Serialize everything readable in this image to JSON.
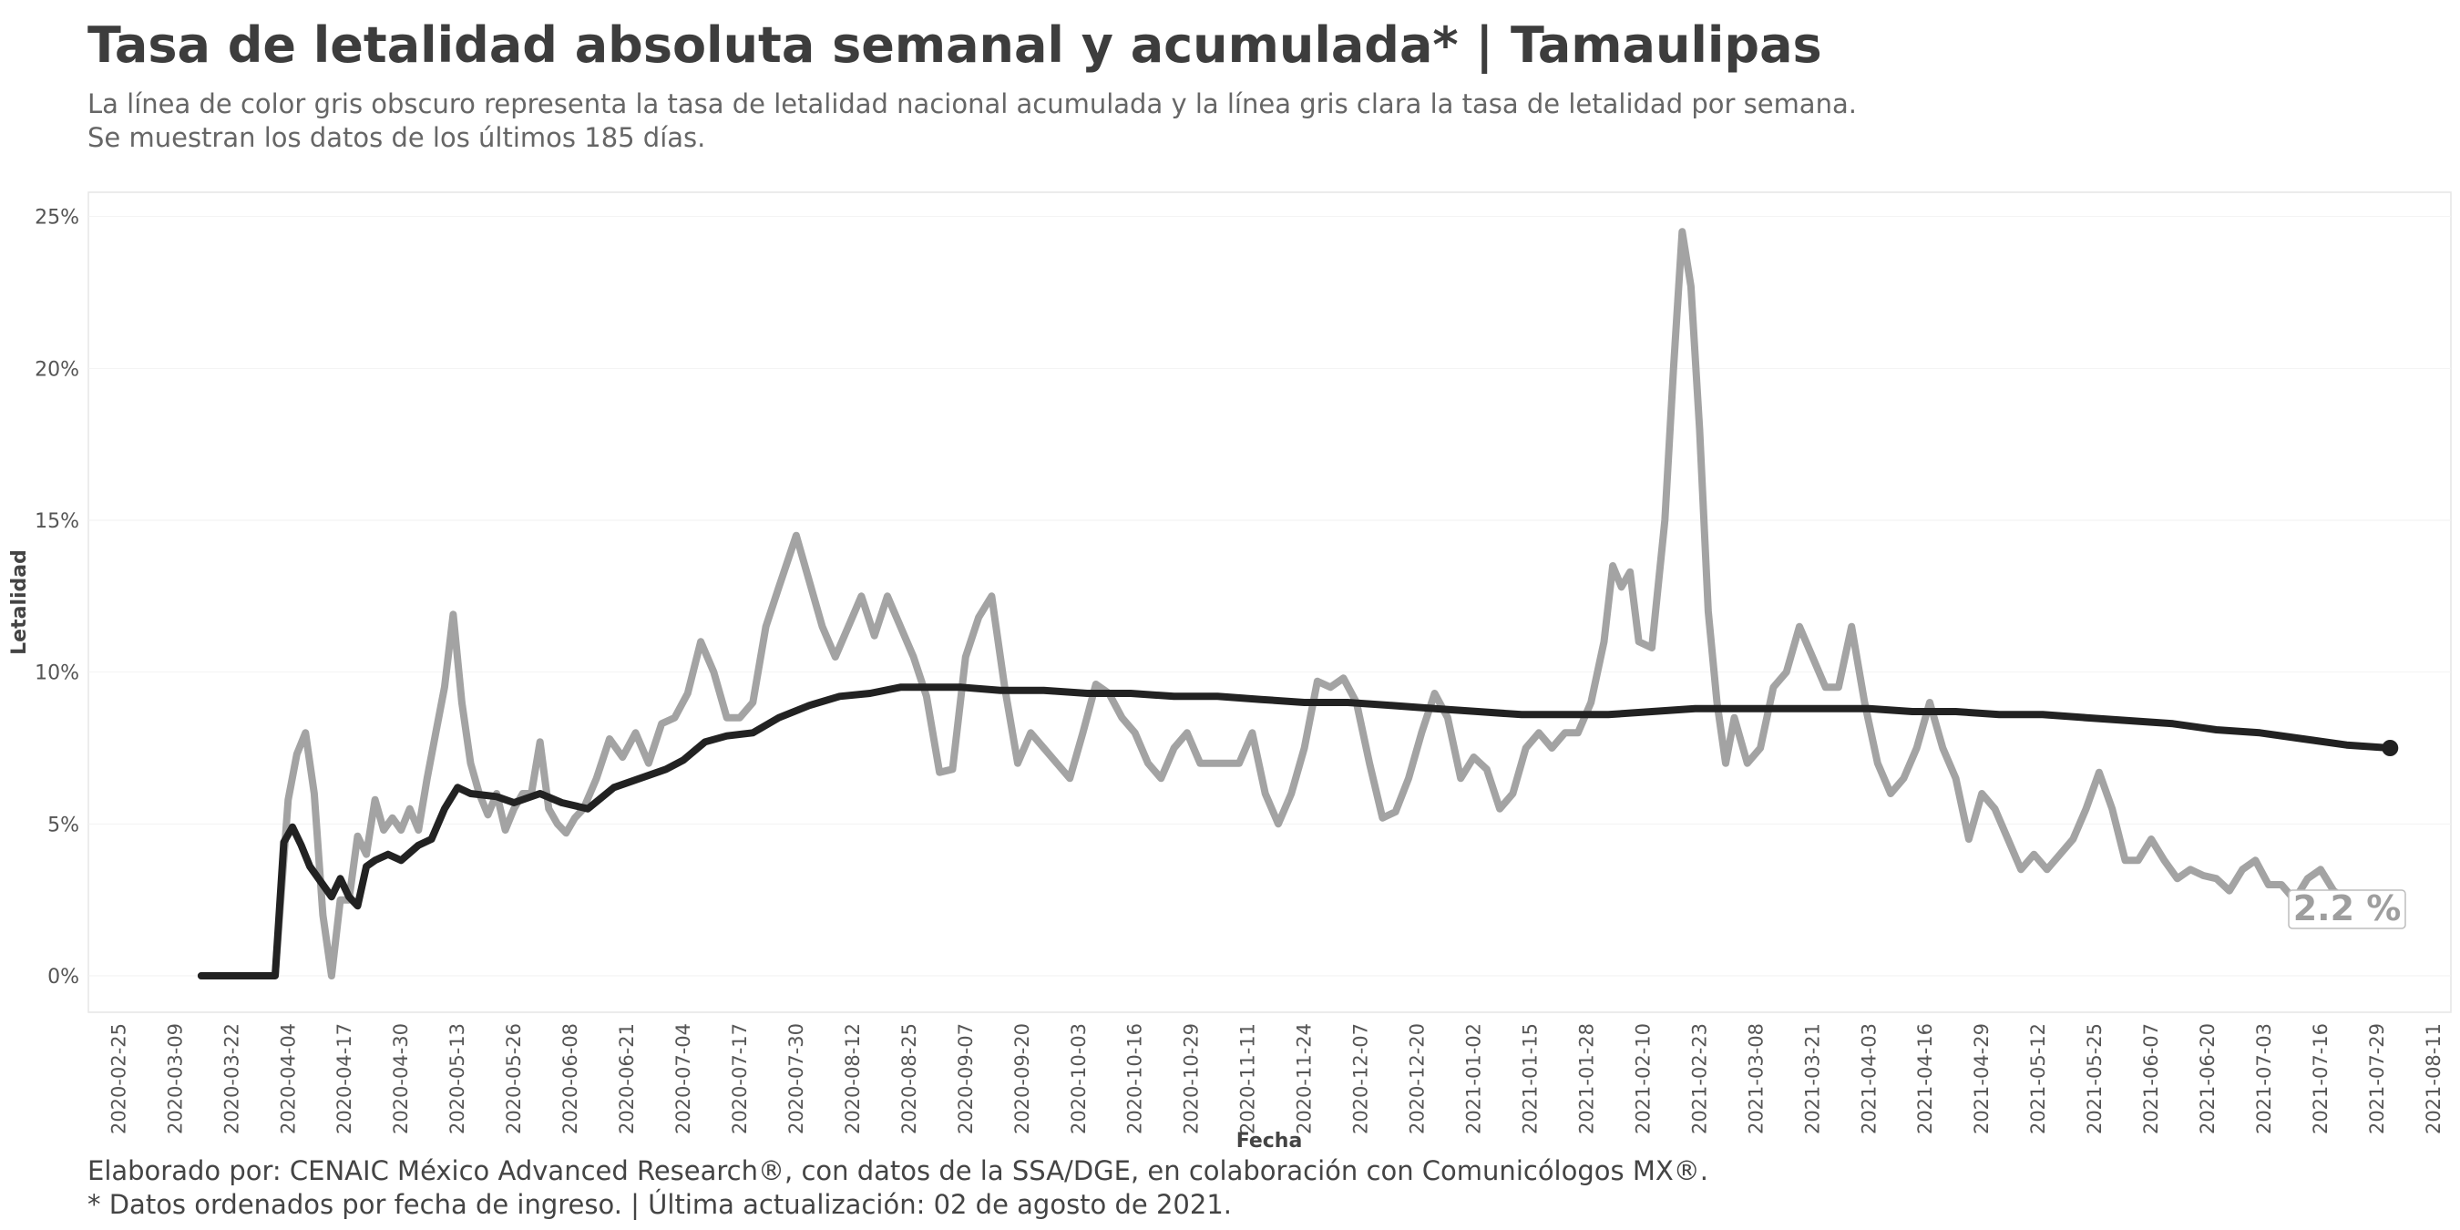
{
  "header": {
    "title": "Tasa de letalidad absoluta semanal y acumulada* | Tamaulipas",
    "subtitle_line1": "La línea de color gris obscuro representa la tasa de letalidad nacional acumulada y la línea gris clara la tasa de letalidad por semana.",
    "subtitle_line2": "Se muestran los datos de los últimos 185 días."
  },
  "footer": {
    "line1": "Elaborado por: CENAIC México Advanced Research®, con datos de la SSA/DGE, en colaboración con Comunicólogos MX®.",
    "line2": "* Datos ordenados por fecha de ingreso. | Última actualización: 02 de agosto de 2021."
  },
  "colors": {
    "weekly": "#a3a3a3",
    "cumulative": "#222222",
    "frame": "#e6e6e6",
    "grid": "#f2f2f2"
  },
  "end_label": "2.2 %",
  "chart_data": {
    "type": "line",
    "xlabel": "Fecha",
    "ylabel": "Letalidad",
    "ylim": [
      -1.2,
      25.8
    ],
    "yticks": [
      0,
      5,
      10,
      15,
      20,
      25
    ],
    "ytick_labels": [
      "0%",
      "5%",
      "10%",
      "15%",
      "20%",
      "25%"
    ],
    "xlim": [
      "2020-02-18",
      "2021-08-15"
    ],
    "xticks": [
      "2020-02-25",
      "2020-03-09",
      "2020-03-22",
      "2020-04-04",
      "2020-04-17",
      "2020-04-30",
      "2020-05-13",
      "2020-05-26",
      "2020-06-08",
      "2020-06-21",
      "2020-07-04",
      "2020-07-17",
      "2020-07-30",
      "2020-08-12",
      "2020-08-25",
      "2020-09-07",
      "2020-09-20",
      "2020-10-03",
      "2020-10-16",
      "2020-10-29",
      "2020-11-11",
      "2020-11-24",
      "2020-12-07",
      "2020-12-20",
      "2021-01-02",
      "2021-01-15",
      "2021-01-28",
      "2021-02-10",
      "2021-02-23",
      "2021-03-08",
      "2021-03-21",
      "2021-04-03",
      "2021-04-16",
      "2021-04-29",
      "2021-05-12",
      "2021-05-25",
      "2021-06-07",
      "2021-06-20",
      "2021-07-03",
      "2021-07-16",
      "2021-07-29",
      "2021-08-11"
    ],
    "series": [
      {
        "role": "weekly",
        "points": [
          [
            "2020-03-15",
            0
          ],
          [
            "2020-04-01",
            0
          ],
          [
            "2020-04-04",
            5.8
          ],
          [
            "2020-04-06",
            7.3
          ],
          [
            "2020-04-08",
            8.0
          ],
          [
            "2020-04-10",
            6.0
          ],
          [
            "2020-04-12",
            2.0
          ],
          [
            "2020-04-14",
            0
          ],
          [
            "2020-04-16",
            2.5
          ],
          [
            "2020-04-18",
            2.5
          ],
          [
            "2020-04-20",
            4.6
          ],
          [
            "2020-04-22",
            4.0
          ],
          [
            "2020-04-24",
            5.8
          ],
          [
            "2020-04-26",
            4.8
          ],
          [
            "2020-04-28",
            5.2
          ],
          [
            "2020-04-30",
            4.8
          ],
          [
            "2020-05-02",
            5.5
          ],
          [
            "2020-05-04",
            4.8
          ],
          [
            "2020-05-06",
            6.5
          ],
          [
            "2020-05-08",
            8.0
          ],
          [
            "2020-05-10",
            9.5
          ],
          [
            "2020-05-12",
            11.9
          ],
          [
            "2020-05-14",
            9.0
          ],
          [
            "2020-05-16",
            7.0
          ],
          [
            "2020-05-18",
            6.0
          ],
          [
            "2020-05-20",
            5.3
          ],
          [
            "2020-05-22",
            6.0
          ],
          [
            "2020-05-24",
            4.8
          ],
          [
            "2020-05-26",
            5.5
          ],
          [
            "2020-05-28",
            6.0
          ],
          [
            "2020-05-30",
            6.0
          ],
          [
            "2020-06-01",
            7.7
          ],
          [
            "2020-06-03",
            5.5
          ],
          [
            "2020-06-05",
            5.0
          ],
          [
            "2020-06-07",
            4.7
          ],
          [
            "2020-06-09",
            5.2
          ],
          [
            "2020-06-11",
            5.5
          ],
          [
            "2020-06-14",
            6.5
          ],
          [
            "2020-06-17",
            7.8
          ],
          [
            "2020-06-20",
            7.2
          ],
          [
            "2020-06-23",
            8.0
          ],
          [
            "2020-06-26",
            7.0
          ],
          [
            "2020-06-29",
            8.3
          ],
          [
            "2020-07-02",
            8.5
          ],
          [
            "2020-07-05",
            9.3
          ],
          [
            "2020-07-08",
            11.0
          ],
          [
            "2020-07-11",
            10.0
          ],
          [
            "2020-07-14",
            8.5
          ],
          [
            "2020-07-17",
            8.5
          ],
          [
            "2020-07-20",
            9.0
          ],
          [
            "2020-07-23",
            11.5
          ],
          [
            "2020-07-26",
            12.8
          ],
          [
            "2020-07-30",
            14.5
          ],
          [
            "2020-08-02",
            13.0
          ],
          [
            "2020-08-05",
            11.5
          ],
          [
            "2020-08-08",
            10.5
          ],
          [
            "2020-08-11",
            11.5
          ],
          [
            "2020-08-14",
            12.5
          ],
          [
            "2020-08-17",
            11.2
          ],
          [
            "2020-08-20",
            12.5
          ],
          [
            "2020-08-23",
            11.5
          ],
          [
            "2020-08-26",
            10.5
          ],
          [
            "2020-08-29",
            9.2
          ],
          [
            "2020-09-01",
            6.7
          ],
          [
            "2020-09-04",
            6.8
          ],
          [
            "2020-09-07",
            10.5
          ],
          [
            "2020-09-10",
            11.8
          ],
          [
            "2020-09-13",
            12.5
          ],
          [
            "2020-09-16",
            9.5
          ],
          [
            "2020-09-19",
            7.0
          ],
          [
            "2020-09-22",
            8.0
          ],
          [
            "2020-09-25",
            7.5
          ],
          [
            "2020-09-28",
            7.0
          ],
          [
            "2020-10-01",
            6.5
          ],
          [
            "2020-10-04",
            8.0
          ],
          [
            "2020-10-07",
            9.6
          ],
          [
            "2020-10-10",
            9.3
          ],
          [
            "2020-10-13",
            8.5
          ],
          [
            "2020-10-16",
            8.0
          ],
          [
            "2020-10-19",
            7.0
          ],
          [
            "2020-10-22",
            6.5
          ],
          [
            "2020-10-25",
            7.5
          ],
          [
            "2020-10-28",
            8.0
          ],
          [
            "2020-10-31",
            7.0
          ],
          [
            "2020-11-03",
            7.0
          ],
          [
            "2020-11-06",
            7.0
          ],
          [
            "2020-11-09",
            7.0
          ],
          [
            "2020-11-12",
            8.0
          ],
          [
            "2020-11-15",
            6.0
          ],
          [
            "2020-11-18",
            5.0
          ],
          [
            "2020-11-21",
            6.0
          ],
          [
            "2020-11-24",
            7.5
          ],
          [
            "2020-11-27",
            9.7
          ],
          [
            "2020-11-30",
            9.5
          ],
          [
            "2020-12-03",
            9.8
          ],
          [
            "2020-12-06",
            9.0
          ],
          [
            "2020-12-09",
            7.0
          ],
          [
            "2020-12-12",
            5.2
          ],
          [
            "2020-12-15",
            5.4
          ],
          [
            "2020-12-18",
            6.5
          ],
          [
            "2020-12-21",
            8.0
          ],
          [
            "2020-12-24",
            9.3
          ],
          [
            "2020-12-27",
            8.5
          ],
          [
            "2020-12-30",
            6.5
          ],
          [
            "2021-01-02",
            7.2
          ],
          [
            "2021-01-05",
            6.8
          ],
          [
            "2021-01-08",
            5.5
          ],
          [
            "2021-01-11",
            6.0
          ],
          [
            "2021-01-14",
            7.5
          ],
          [
            "2021-01-17",
            8.0
          ],
          [
            "2021-01-20",
            7.5
          ],
          [
            "2021-01-23",
            8.0
          ],
          [
            "2021-01-26",
            8.0
          ],
          [
            "2021-01-29",
            9.0
          ],
          [
            "2021-02-01",
            11.0
          ],
          [
            "2021-02-03",
            13.5
          ],
          [
            "2021-02-05",
            12.8
          ],
          [
            "2021-02-07",
            13.3
          ],
          [
            "2021-02-09",
            11.0
          ],
          [
            "2021-02-12",
            10.8
          ],
          [
            "2021-02-15",
            15.0
          ],
          [
            "2021-02-17",
            20.0
          ],
          [
            "2021-02-19",
            24.5
          ],
          [
            "2021-02-21",
            22.7
          ],
          [
            "2021-02-23",
            18.0
          ],
          [
            "2021-02-25",
            12.0
          ],
          [
            "2021-02-27",
            9.0
          ],
          [
            "2021-03-01",
            7.0
          ],
          [
            "2021-03-03",
            8.5
          ],
          [
            "2021-03-06",
            7.0
          ],
          [
            "2021-03-09",
            7.5
          ],
          [
            "2021-03-12",
            9.5
          ],
          [
            "2021-03-15",
            10.0
          ],
          [
            "2021-03-18",
            11.5
          ],
          [
            "2021-03-21",
            10.5
          ],
          [
            "2021-03-24",
            9.5
          ],
          [
            "2021-03-27",
            9.5
          ],
          [
            "2021-03-30",
            11.5
          ],
          [
            "2021-04-02",
            9.0
          ],
          [
            "2021-04-05",
            7.0
          ],
          [
            "2021-04-08",
            6.0
          ],
          [
            "2021-04-11",
            6.5
          ],
          [
            "2021-04-14",
            7.5
          ],
          [
            "2021-04-17",
            9.0
          ],
          [
            "2021-04-20",
            7.5
          ],
          [
            "2021-04-23",
            6.5
          ],
          [
            "2021-04-26",
            4.5
          ],
          [
            "2021-04-29",
            6.0
          ],
          [
            "2021-05-02",
            5.5
          ],
          [
            "2021-05-05",
            4.5
          ],
          [
            "2021-05-08",
            3.5
          ],
          [
            "2021-05-11",
            4.0
          ],
          [
            "2021-05-14",
            3.5
          ],
          [
            "2021-05-17",
            4.0
          ],
          [
            "2021-05-20",
            4.5
          ],
          [
            "2021-05-23",
            5.5
          ],
          [
            "2021-05-26",
            6.7
          ],
          [
            "2021-05-29",
            5.5
          ],
          [
            "2021-06-01",
            3.8
          ],
          [
            "2021-06-04",
            3.8
          ],
          [
            "2021-06-07",
            4.5
          ],
          [
            "2021-06-10",
            3.8
          ],
          [
            "2021-06-13",
            3.2
          ],
          [
            "2021-06-16",
            3.5
          ],
          [
            "2021-06-19",
            3.3
          ],
          [
            "2021-06-22",
            3.2
          ],
          [
            "2021-06-25",
            2.8
          ],
          [
            "2021-06-28",
            3.5
          ],
          [
            "2021-07-01",
            3.8
          ],
          [
            "2021-07-04",
            3.0
          ],
          [
            "2021-07-07",
            3.0
          ],
          [
            "2021-07-10",
            2.5
          ],
          [
            "2021-07-13",
            3.2
          ],
          [
            "2021-07-16",
            3.5
          ],
          [
            "2021-07-19",
            2.8
          ],
          [
            "2021-07-22",
            2.5
          ],
          [
            "2021-07-25",
            2.3
          ],
          [
            "2021-07-28",
            2.2
          ],
          [
            "2021-08-01",
            2.2
          ]
        ]
      },
      {
        "role": "cumulative",
        "points": [
          [
            "2020-03-15",
            0
          ],
          [
            "2020-04-01",
            0
          ],
          [
            "2020-04-03",
            4.4
          ],
          [
            "2020-04-05",
            4.9
          ],
          [
            "2020-04-07",
            4.3
          ],
          [
            "2020-04-09",
            3.6
          ],
          [
            "2020-04-12",
            3.0
          ],
          [
            "2020-04-14",
            2.6
          ],
          [
            "2020-04-16",
            3.2
          ],
          [
            "2020-04-18",
            2.6
          ],
          [
            "2020-04-20",
            2.3
          ],
          [
            "2020-04-22",
            3.6
          ],
          [
            "2020-04-24",
            3.8
          ],
          [
            "2020-04-27",
            4.0
          ],
          [
            "2020-04-30",
            3.8
          ],
          [
            "2020-05-04",
            4.3
          ],
          [
            "2020-05-07",
            4.5
          ],
          [
            "2020-05-10",
            5.5
          ],
          [
            "2020-05-13",
            6.2
          ],
          [
            "2020-05-16",
            6.0
          ],
          [
            "2020-05-22",
            5.9
          ],
          [
            "2020-05-26",
            5.7
          ],
          [
            "2020-06-01",
            6.0
          ],
          [
            "2020-06-06",
            5.7
          ],
          [
            "2020-06-12",
            5.5
          ],
          [
            "2020-06-18",
            6.2
          ],
          [
            "2020-06-24",
            6.5
          ],
          [
            "2020-06-30",
            6.8
          ],
          [
            "2020-07-04",
            7.1
          ],
          [
            "2020-07-09",
            7.7
          ],
          [
            "2020-07-14",
            7.9
          ],
          [
            "2020-07-20",
            8.0
          ],
          [
            "2020-07-26",
            8.5
          ],
          [
            "2020-08-02",
            8.9
          ],
          [
            "2020-08-09",
            9.2
          ],
          [
            "2020-08-16",
            9.3
          ],
          [
            "2020-08-23",
            9.5
          ],
          [
            "2020-08-30",
            9.5
          ],
          [
            "2020-09-06",
            9.5
          ],
          [
            "2020-09-15",
            9.4
          ],
          [
            "2020-09-25",
            9.4
          ],
          [
            "2020-10-05",
            9.3
          ],
          [
            "2020-10-15",
            9.3
          ],
          [
            "2020-10-25",
            9.2
          ],
          [
            "2020-11-04",
            9.2
          ],
          [
            "2020-11-14",
            9.1
          ],
          [
            "2020-11-24",
            9.0
          ],
          [
            "2020-12-04",
            9.0
          ],
          [
            "2020-12-14",
            8.9
          ],
          [
            "2020-12-24",
            8.8
          ],
          [
            "2021-01-03",
            8.7
          ],
          [
            "2021-01-13",
            8.6
          ],
          [
            "2021-01-23",
            8.6
          ],
          [
            "2021-02-02",
            8.6
          ],
          [
            "2021-02-12",
            8.7
          ],
          [
            "2021-02-22",
            8.8
          ],
          [
            "2021-03-04",
            8.8
          ],
          [
            "2021-03-14",
            8.8
          ],
          [
            "2021-03-24",
            8.8
          ],
          [
            "2021-04-03",
            8.8
          ],
          [
            "2021-04-13",
            8.7
          ],
          [
            "2021-04-23",
            8.7
          ],
          [
            "2021-05-03",
            8.6
          ],
          [
            "2021-05-13",
            8.6
          ],
          [
            "2021-05-23",
            8.5
          ],
          [
            "2021-06-02",
            8.4
          ],
          [
            "2021-06-12",
            8.3
          ],
          [
            "2021-06-22",
            8.1
          ],
          [
            "2021-07-02",
            8.0
          ],
          [
            "2021-07-12",
            7.8
          ],
          [
            "2021-07-22",
            7.6
          ],
          [
            "2021-08-01",
            7.5
          ]
        ]
      }
    ]
  }
}
